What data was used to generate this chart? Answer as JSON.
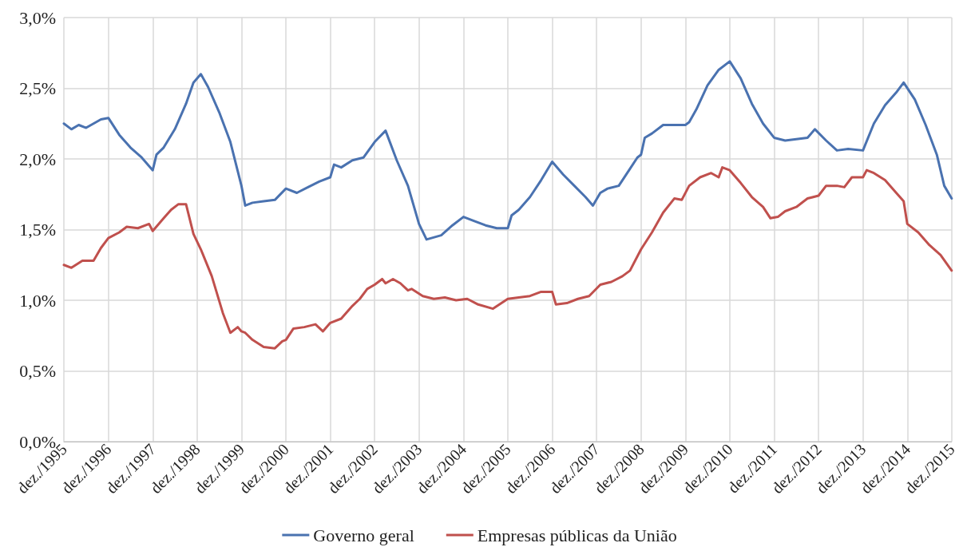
{
  "chart_data": {
    "type": "line",
    "xlim": [
      "1995-12",
      "2015-12"
    ],
    "xticks": [
      {
        "value": "1995-12",
        "label": "dez./1995"
      },
      {
        "value": "1996-12",
        "label": "dez./1996"
      },
      {
        "value": "1997-12",
        "label": "dez./1997"
      },
      {
        "value": "1998-12",
        "label": "dez./1998"
      },
      {
        "value": "1999-12",
        "label": "dez./1999"
      },
      {
        "value": "2000-12",
        "label": "dez./2000"
      },
      {
        "value": "2001-12",
        "label": "dez./2001"
      },
      {
        "value": "2002-12",
        "label": "dez./2002"
      },
      {
        "value": "2003-12",
        "label": "dez./2003"
      },
      {
        "value": "2004-12",
        "label": "dez./2004"
      },
      {
        "value": "2005-12",
        "label": "dez./2005"
      },
      {
        "value": "2006-12",
        "label": "dez./2006"
      },
      {
        "value": "2007-12",
        "label": "dez./2007"
      },
      {
        "value": "2008-12",
        "label": "dez./2008"
      },
      {
        "value": "2009-12",
        "label": "dez./2009"
      },
      {
        "value": "2010-12",
        "label": "dez./2010"
      },
      {
        "value": "2011-12",
        "label": "dez./2011"
      },
      {
        "value": "2012-12",
        "label": "dez./2012"
      },
      {
        "value": "2013-12",
        "label": "dez./2013"
      },
      {
        "value": "2014-12",
        "label": "dez./2014"
      },
      {
        "value": "2015-12",
        "label": "dez./2015"
      }
    ],
    "ylim": [
      0,
      3
    ],
    "yticks": [
      {
        "value": 0,
        "label": "0,0%"
      },
      {
        "value": 0.5,
        "label": "0,5%"
      },
      {
        "value": 1,
        "label": "1,0%"
      },
      {
        "value": 1.5,
        "label": "1,5%"
      },
      {
        "value": 2,
        "label": "2,0%"
      },
      {
        "value": 2.5,
        "label": "2,5%"
      },
      {
        "value": 3,
        "label": "3,0%"
      }
    ],
    "grid": true,
    "legend": "bottom",
    "marker": "none",
    "line_style": "solid",
    "series": [
      {
        "name": "Governo geral",
        "color": "#4a72b0",
        "x": [
          "1995-12",
          "1996-02",
          "1996-04",
          "1996-06",
          "1996-08",
          "1996-10",
          "1996-12",
          "1997-03",
          "1997-06",
          "1997-09",
          "1997-12",
          "1998-01",
          "1998-03",
          "1998-06",
          "1998-09",
          "1998-11",
          "1999-01",
          "1999-03",
          "1999-06",
          "1999-09",
          "1999-12",
          "2000-01",
          "2000-03",
          "2000-06",
          "2000-09",
          "2000-12",
          "2001-03",
          "2001-06",
          "2001-09",
          "2001-12",
          "2002-01",
          "2002-03",
          "2002-06",
          "2002-09",
          "2002-12",
          "2003-03",
          "2003-06",
          "2003-09",
          "2003-12",
          "2004-02",
          "2004-06",
          "2004-09",
          "2004-12",
          "2005-03",
          "2005-06",
          "2005-09",
          "2005-12",
          "2006-01",
          "2006-03",
          "2006-06",
          "2006-09",
          "2006-12",
          "2007-03",
          "2007-06",
          "2007-09",
          "2007-11",
          "2008-01",
          "2008-03",
          "2008-06",
          "2008-09",
          "2008-11",
          "2008-12",
          "2009-01",
          "2009-03",
          "2009-06",
          "2009-09",
          "2009-12",
          "2010-01",
          "2010-03",
          "2010-06",
          "2010-09",
          "2010-12",
          "2011-03",
          "2011-06",
          "2011-09",
          "2011-12",
          "2012-03",
          "2012-06",
          "2012-09",
          "2012-11",
          "2013-02",
          "2013-05",
          "2013-08",
          "2013-12",
          "2014-03",
          "2014-06",
          "2014-09",
          "2014-11",
          "2015-02",
          "2015-05",
          "2015-08",
          "2015-10",
          "2015-12"
        ],
        "values": [
          2.25,
          2.21,
          2.24,
          2.22,
          2.25,
          2.28,
          2.29,
          2.17,
          2.08,
          2.01,
          1.92,
          2.03,
          2.08,
          2.21,
          2.39,
          2.54,
          2.6,
          2.51,
          2.33,
          2.12,
          1.81,
          1.67,
          1.69,
          1.7,
          1.71,
          1.79,
          1.76,
          1.8,
          1.84,
          1.87,
          1.96,
          1.94,
          1.99,
          2.01,
          2.12,
          2.2,
          1.99,
          1.81,
          1.54,
          1.43,
          1.46,
          1.53,
          1.59,
          1.56,
          1.53,
          1.51,
          1.51,
          1.6,
          1.64,
          1.73,
          1.85,
          1.98,
          1.89,
          1.81,
          1.73,
          1.67,
          1.76,
          1.79,
          1.81,
          1.93,
          2.01,
          2.03,
          2.15,
          2.18,
          2.24,
          2.24,
          2.24,
          2.26,
          2.35,
          2.52,
          2.63,
          2.69,
          2.57,
          2.39,
          2.25,
          2.15,
          2.13,
          2.14,
          2.15,
          2.21,
          2.13,
          2.06,
          2.07,
          2.06,
          2.25,
          2.38,
          2.47,
          2.54,
          2.42,
          2.24,
          2.03,
          1.81,
          1.72
        ]
      },
      {
        "name": "Empresas públicas da União",
        "color": "#c0504d",
        "x": [
          "1995-12",
          "1996-02",
          "1996-05",
          "1996-08",
          "1996-10",
          "1996-12",
          "1997-03",
          "1997-05",
          "1997-08",
          "1997-11",
          "1997-12",
          "1998-03",
          "1998-05",
          "1998-07",
          "1998-09",
          "1998-11",
          "1999-01",
          "1999-04",
          "1999-07",
          "1999-09",
          "1999-11",
          "1999-12",
          "2000-01",
          "2000-03",
          "2000-06",
          "2000-09",
          "2000-11",
          "2000-12",
          "2001-02",
          "2001-05",
          "2001-08",
          "2001-10",
          "2001-12",
          "2002-03",
          "2002-06",
          "2002-08",
          "2002-10",
          "2002-12",
          "2003-02",
          "2003-03",
          "2003-05",
          "2003-07",
          "2003-09",
          "2003-10",
          "2004-01",
          "2004-04",
          "2004-07",
          "2004-10",
          "2005-01",
          "2005-04",
          "2005-08",
          "2005-12",
          "2006-03",
          "2006-06",
          "2006-09",
          "2006-12",
          "2007-01",
          "2007-04",
          "2007-07",
          "2007-10",
          "2008-01",
          "2008-04",
          "2008-07",
          "2008-09",
          "2008-12",
          "2009-03",
          "2009-06",
          "2009-09",
          "2009-11",
          "2010-01",
          "2010-04",
          "2010-07",
          "2010-09",
          "2010-10",
          "2010-12",
          "2011-03",
          "2011-06",
          "2011-09",
          "2011-11",
          "2012-01",
          "2012-03",
          "2012-06",
          "2012-09",
          "2012-12",
          "2013-02",
          "2013-05",
          "2013-07",
          "2013-09",
          "2013-12",
          "2014-01",
          "2014-03",
          "2014-06",
          "2014-09",
          "2014-11",
          "2014-12",
          "2015-03",
          "2015-06",
          "2015-09",
          "2015-12"
        ],
        "values": [
          1.25,
          1.23,
          1.28,
          1.28,
          1.37,
          1.44,
          1.48,
          1.52,
          1.51,
          1.54,
          1.49,
          1.58,
          1.64,
          1.68,
          1.68,
          1.47,
          1.36,
          1.17,
          0.91,
          0.77,
          0.81,
          0.78,
          0.77,
          0.72,
          0.67,
          0.66,
          0.71,
          0.72,
          0.8,
          0.81,
          0.83,
          0.78,
          0.84,
          0.87,
          0.96,
          1.01,
          1.08,
          1.11,
          1.15,
          1.12,
          1.15,
          1.12,
          1.07,
          1.08,
          1.03,
          1.01,
          1.02,
          1.0,
          1.01,
          0.97,
          0.94,
          1.01,
          1.02,
          1.03,
          1.06,
          1.06,
          0.97,
          0.98,
          1.01,
          1.03,
          1.11,
          1.13,
          1.17,
          1.21,
          1.36,
          1.48,
          1.62,
          1.72,
          1.71,
          1.81,
          1.87,
          1.9,
          1.87,
          1.94,
          1.92,
          1.83,
          1.73,
          1.66,
          1.58,
          1.59,
          1.63,
          1.66,
          1.72,
          1.74,
          1.81,
          1.81,
          1.8,
          1.87,
          1.87,
          1.92,
          1.9,
          1.85,
          1.76,
          1.7,
          1.54,
          1.48,
          1.39,
          1.32,
          1.21
        ]
      }
    ]
  }
}
